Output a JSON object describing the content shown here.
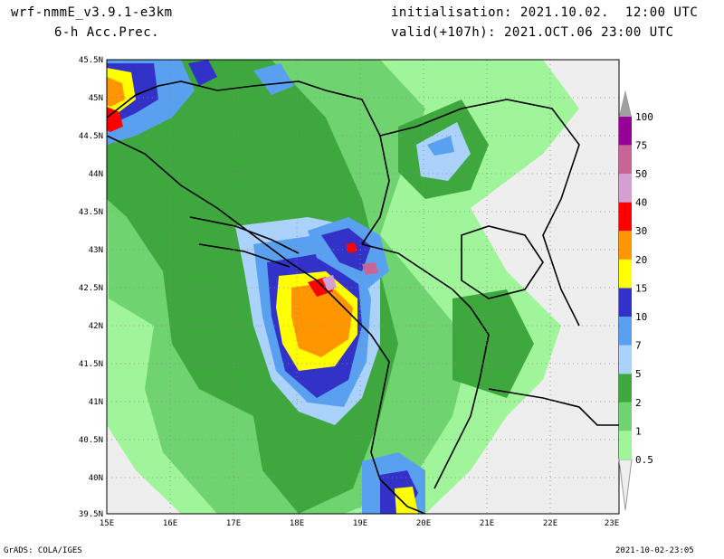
{
  "header": {
    "model": "wrf-nmmE_v3.9.1-e3km",
    "field": "6-h Acc.Prec.",
    "init": "initialisation: 2021.10.02.  12:00 UTC",
    "valid": "valid(+107h): 2021.OCT.06 23:00 UTC"
  },
  "map": {
    "lon_labels": [
      "15E",
      "16E",
      "17E",
      "18E",
      "19E",
      "20E",
      "21E",
      "22E",
      "23E"
    ],
    "lat_labels": [
      "45.5N",
      "45N",
      "44.5N",
      "44N",
      "43.5N",
      "43N",
      "42.5N",
      "42N",
      "41.5N",
      "41N",
      "40.5N",
      "40N",
      "39.5N"
    ]
  },
  "legend": {
    "levels": [
      {
        "label": "0.5",
        "color": "#a0f59a"
      },
      {
        "label": "1",
        "color": "#6fd46f"
      },
      {
        "label": "2",
        "color": "#3ea83e"
      },
      {
        "label": "5",
        "color": "#aad2fa"
      },
      {
        "label": "7",
        "color": "#5aa0f0"
      },
      {
        "label": "10",
        "color": "#3232c8"
      },
      {
        "label": "15",
        "color": "#ffff00"
      },
      {
        "label": "20",
        "color": "#ff9600"
      },
      {
        "label": "30",
        "color": "#ff0000"
      },
      {
        "label": "40",
        "color": "#d2a0d2"
      },
      {
        "label": "50",
        "color": "#c86496"
      },
      {
        "label": "75",
        "color": "#960096"
      },
      {
        "label": "100",
        "color": "#a0a0a0"
      }
    ]
  },
  "footer": {
    "left": "GrADS: COLA/IGES",
    "right": "2021-10-02-23:05"
  }
}
